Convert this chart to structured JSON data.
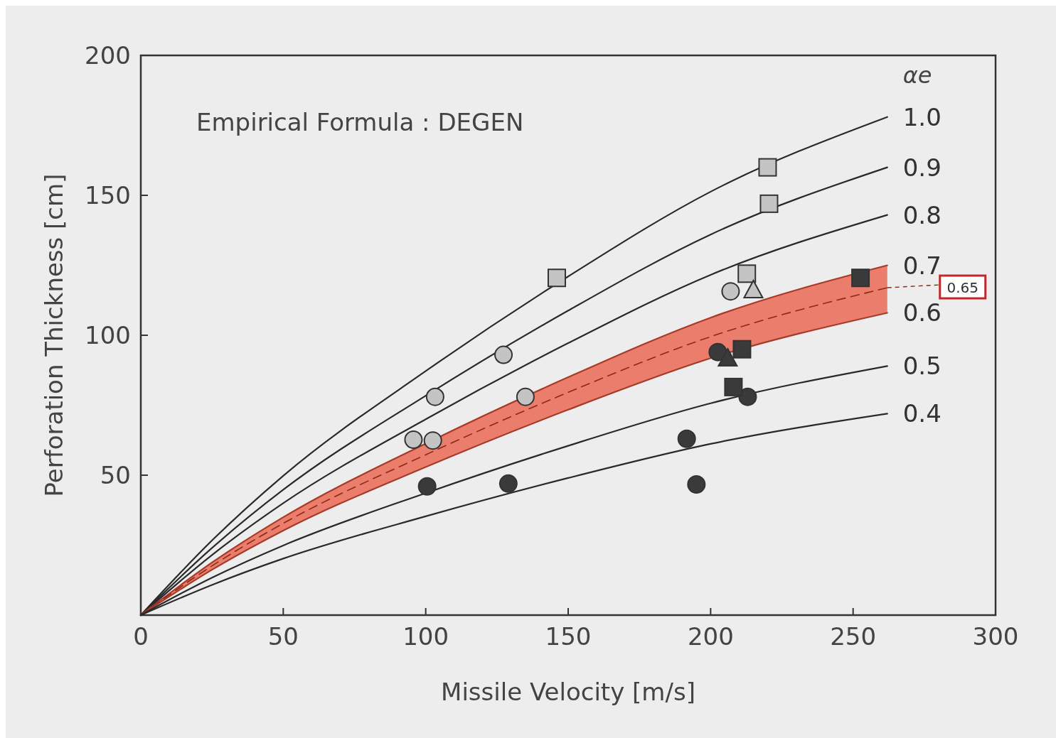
{
  "chart_data": {
    "type": "line",
    "xlabel": "Missile Velocity [m/s]",
    "ylabel": "Perforation Thickness [cm]",
    "legend_title": "αe",
    "annotations": [
      "Empirical Formula : DEGEN"
    ],
    "xlim": [
      0,
      300
    ],
    "ylim": [
      0,
      200
    ],
    "xticks": [
      0,
      50,
      100,
      150,
      200,
      250,
      300
    ],
    "yticks": [
      50,
      100,
      150,
      200
    ],
    "grid": false,
    "series": [
      {
        "name": "1.0",
        "color": "#2a2a2a",
        "x": [
          0,
          25,
          50,
          100,
          150,
          200,
          262
        ],
        "values": [
          0,
          26.7,
          49.8,
          87.2,
          121,
          151.3,
          178
        ]
      },
      {
        "name": "0.9",
        "color": "#2a2a2a",
        "x": [
          0,
          25,
          50,
          100,
          150,
          200,
          262
        ],
        "values": [
          0,
          24,
          44.8,
          78.4,
          108.8,
          136,
          160
        ]
      },
      {
        "name": "0.8",
        "color": "#2a2a2a",
        "x": [
          0,
          25,
          50,
          100,
          150,
          200,
          262
        ],
        "values": [
          0,
          21.5,
          40,
          70,
          97.2,
          121.6,
          143
        ]
      },
      {
        "name": "0.7",
        "color": "#a83a28",
        "x": [
          0,
          25,
          50,
          100,
          150,
          200,
          262
        ],
        "values": [
          0,
          18.8,
          35,
          61.3,
          85,
          106.3,
          125
        ]
      },
      {
        "name": "0.65",
        "line_style": "dashed",
        "color": "#8b2a1a",
        "x": [
          0,
          25,
          50,
          100,
          150,
          200,
          262
        ],
        "values": [
          0,
          17.6,
          32.8,
          57.3,
          79.6,
          99.5,
          117
        ],
        "lower": [
          0,
          16.2,
          30.2,
          52.9,
          73.4,
          91.8,
          108
        ],
        "upper": [
          0,
          18.8,
          35,
          61.3,
          85,
          106.3,
          125
        ]
      },
      {
        "name": "0.6",
        "color": "#a83a28",
        "x": [
          0,
          25,
          50,
          100,
          150,
          200,
          262
        ],
        "values": [
          0,
          16.2,
          30.2,
          52.9,
          73.4,
          91.8,
          108
        ]
      },
      {
        "name": "0.5",
        "color": "#2a2a2a",
        "x": [
          0,
          25,
          50,
          100,
          150,
          200,
          262
        ],
        "values": [
          0,
          13.4,
          24.9,
          43.6,
          60.5,
          75.7,
          89
        ]
      },
      {
        "name": "0.4",
        "color": "#2a2a2a",
        "x": [
          0,
          25,
          50,
          100,
          150,
          200,
          262
        ],
        "values": [
          0,
          10.8,
          20.2,
          35.3,
          49,
          61.2,
          72
        ]
      },
      {
        "type": "scatter",
        "marker": "square",
        "color": "#c4c4c4",
        "x": [
          146,
          220,
          220.5,
          212.7
        ],
        "values": [
          120.5,
          160,
          147,
          122
        ]
      },
      {
        "type": "scatter",
        "marker": "circle",
        "color": "#c4c4c4",
        "x": [
          95.7,
          102.5,
          103.3,
          127.3,
          135,
          207
        ],
        "values": [
          62.7,
          62.4,
          78,
          93,
          78,
          115.7
        ]
      },
      {
        "type": "scatter",
        "marker": "triangle",
        "color": "#c4c4c4",
        "x": [
          215
        ],
        "values": [
          116
        ]
      },
      {
        "type": "scatter",
        "marker": "circle",
        "color": "#3a3a3a",
        "x": [
          100.5,
          129,
          191.6,
          195,
          213,
          202.5
        ],
        "values": [
          46,
          47,
          63,
          46.7,
          78,
          94
        ]
      },
      {
        "type": "scatter",
        "marker": "square",
        "color": "#3a3a3a",
        "x": [
          208,
          211,
          252.6
        ],
        "values": [
          81.5,
          95,
          120.5
        ]
      },
      {
        "type": "scatter",
        "marker": "triangle",
        "color": "#3a3a3a",
        "x": [
          206
        ],
        "values": [
          91.6
        ]
      }
    ]
  }
}
